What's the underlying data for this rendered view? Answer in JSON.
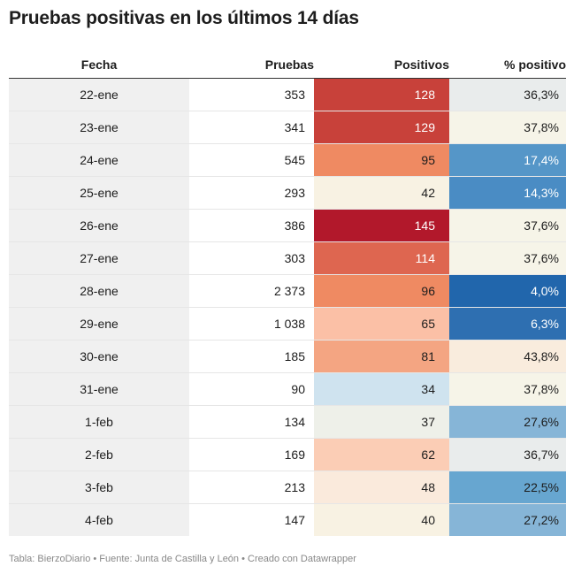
{
  "title": "Pruebas positivas en los últimos 14 días",
  "footer": "Tabla: BierzoDiario • Fuente: Junta de Castilla y León • Creado con Datawrapper",
  "colors": {
    "text_dark": "#1d1d1d",
    "text_light": "#ffffff",
    "date_column_bg": "#f0f0f0",
    "row_divider": "#e6e6e6",
    "header_rule": "#333333"
  },
  "chart_data": {
    "type": "table",
    "columns": [
      "Fecha",
      "Pruebas",
      "Positivos",
      "% positivo"
    ],
    "rows": [
      {
        "fecha": "22-ene",
        "pruebas": "353",
        "positivos": "128",
        "pct": "36,3%",
        "pos_color": "#c8413a",
        "pct_color": "#e9ecec"
      },
      {
        "fecha": "23-ene",
        "pruebas": "341",
        "positivos": "129",
        "pct": "37,8%",
        "pos_color": "#c8413a",
        "pct_color": "#f6f4e8"
      },
      {
        "fecha": "24-ene",
        "pruebas": "545",
        "positivos": "95",
        "pct": "17,4%",
        "pos_color": "#ef8a62",
        "pct_color": "#5596c8"
      },
      {
        "fecha": "25-ene",
        "pruebas": "293",
        "positivos": "42",
        "pct": "14,3%",
        "pos_color": "#f8f2e3",
        "pct_color": "#4a8cc4"
      },
      {
        "fecha": "26-ene",
        "pruebas": "386",
        "positivos": "145",
        "pct": "37,6%",
        "pos_color": "#b2182b",
        "pct_color": "#f6f4e8"
      },
      {
        "fecha": "27-ene",
        "pruebas": "303",
        "positivos": "114",
        "pct": "37,6%",
        "pos_color": "#de6650",
        "pct_color": "#f6f4e8"
      },
      {
        "fecha": "28-ene",
        "pruebas": "2 373",
        "positivos": "96",
        "pct": "4,0%",
        "pos_color": "#ef8a62",
        "pct_color": "#2166ac"
      },
      {
        "fecha": "29-ene",
        "pruebas": "1 038",
        "positivos": "65",
        "pct": "6,3%",
        "pos_color": "#fbc0a6",
        "pct_color": "#2e6fb1"
      },
      {
        "fecha": "30-ene",
        "pruebas": "185",
        "positivos": "81",
        "pct": "43,8%",
        "pos_color": "#f4a582",
        "pct_color": "#f9ecdd"
      },
      {
        "fecha": "31-ene",
        "pruebas": "90",
        "positivos": "34",
        "pct": "37,8%",
        "pos_color": "#cfe3ef",
        "pct_color": "#f6f4e8"
      },
      {
        "fecha": "1-feb",
        "pruebas": "134",
        "positivos": "37",
        "pct": "27,6%",
        "pos_color": "#eef0e9",
        "pct_color": "#86b5d7"
      },
      {
        "fecha": "2-feb",
        "pruebas": "169",
        "positivos": "62",
        "pct": "36,7%",
        "pos_color": "#fbcdb5",
        "pct_color": "#e9ecec"
      },
      {
        "fecha": "3-feb",
        "pruebas": "213",
        "positivos": "48",
        "pct": "22,5%",
        "pos_color": "#faeadc",
        "pct_color": "#67a6d0"
      },
      {
        "fecha": "4-feb",
        "pruebas": "147",
        "positivos": "40",
        "pct": "27,2%",
        "pos_color": "#f8f2e3",
        "pct_color": "#86b5d7"
      }
    ]
  }
}
